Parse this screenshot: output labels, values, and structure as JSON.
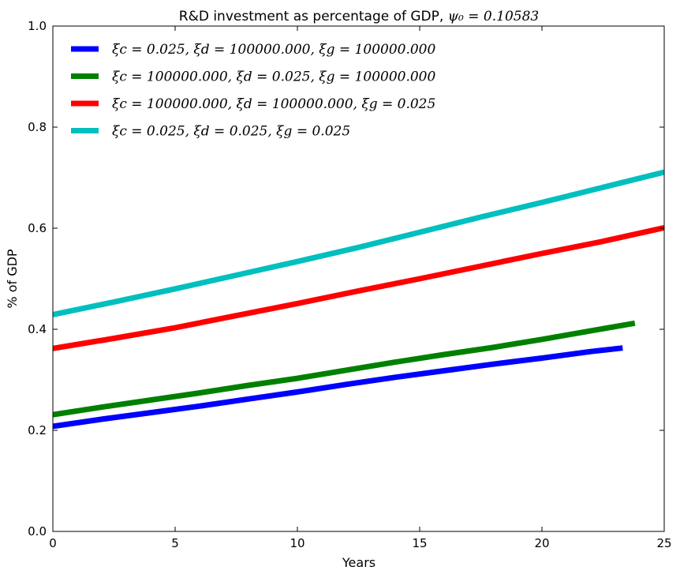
{
  "chart_data": {
    "type": "line",
    "title": "R&D investment as percentage of  GDP, ",
    "title_math": "ψ₀ = 0.10583",
    "xlabel": "Years",
    "ylabel": "% of GDP",
    "xlim": [
      0,
      25
    ],
    "ylim": [
      0.0,
      1.0
    ],
    "xticks": [
      "0",
      "5",
      "10",
      "15",
      "20",
      "25"
    ],
    "yticks": [
      "0.0",
      "0.2",
      "0.4",
      "0.6",
      "0.8",
      "1.0"
    ],
    "grid": false,
    "legend_position": "upper-left",
    "series": [
      {
        "name": "ξc = 0.025, ξd = 100000.000, ξg = 100000.000",
        "color": "#0000ff",
        "x": [
          0,
          2,
          4,
          6,
          8,
          10,
          12,
          14,
          16,
          18,
          20,
          22,
          23.3
        ],
        "y": [
          0.208,
          0.222,
          0.235,
          0.248,
          0.262,
          0.276,
          0.291,
          0.305,
          0.318,
          0.331,
          0.343,
          0.356,
          0.363
        ]
      },
      {
        "name": "ξc = 100000.000, ξd = 0.025, ξg = 100000.000",
        "color": "#008000",
        "x": [
          0,
          2,
          4,
          6,
          8,
          10,
          12,
          14,
          16,
          18,
          20,
          22,
          23.8
        ],
        "y": [
          0.231,
          0.246,
          0.26,
          0.274,
          0.289,
          0.303,
          0.319,
          0.335,
          0.35,
          0.364,
          0.38,
          0.397,
          0.412
        ]
      },
      {
        "name": "ξc = 100000.000, ξd = 100000.000, ξg = 0.025",
        "color": "#ff0000",
        "x": [
          0,
          2.5,
          5,
          7.5,
          10,
          12.5,
          15,
          17.5,
          20,
          22.5,
          25
        ],
        "y": [
          0.362,
          0.382,
          0.403,
          0.427,
          0.451,
          0.476,
          0.5,
          0.525,
          0.55,
          0.574,
          0.601
        ]
      },
      {
        "name": "ξc = 0.025, ξd = 0.025, ξg = 0.025",
        "color": "#00bfbf",
        "x": [
          0,
          2.5,
          5,
          7.5,
          10,
          12.5,
          15,
          17.5,
          20,
          22.5,
          25
        ],
        "y": [
          0.429,
          0.454,
          0.48,
          0.507,
          0.534,
          0.562,
          0.592,
          0.622,
          0.651,
          0.681,
          0.711
        ]
      }
    ]
  }
}
